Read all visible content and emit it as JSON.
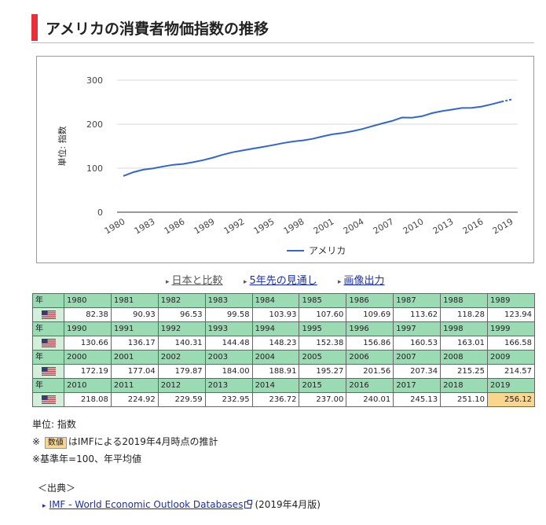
{
  "page": {
    "title": "アメリカの消費者物価指数の推移"
  },
  "links": [
    {
      "label": "日本と比較"
    },
    {
      "label": "5年先の見通し"
    },
    {
      "label": "画像出力"
    }
  ],
  "colors": {
    "accent": "#e8303a",
    "line": "#3366cc",
    "year_header_bg": "#9adbb4",
    "flag_cell_bg": "#d4eedc",
    "estimate_bg": "#f9d58e",
    "link": "#1a2fa8"
  },
  "chart_data": {
    "type": "line",
    "ylabel": "単位: 指数",
    "ylim": [
      0,
      300
    ],
    "yticks": [
      "0",
      "100",
      "200",
      "300"
    ],
    "xticks": [
      "1980",
      "1983",
      "1986",
      "1989",
      "1992",
      "1995",
      "1998",
      "2001",
      "2004",
      "2007",
      "2010",
      "2013",
      "2016",
      "2019"
    ],
    "legend_position": "bottom",
    "grid": true,
    "x": [
      1980,
      1981,
      1982,
      1983,
      1984,
      1985,
      1986,
      1987,
      1988,
      1989,
      1990,
      1991,
      1992,
      1993,
      1994,
      1995,
      1996,
      1997,
      1998,
      1999,
      2000,
      2001,
      2002,
      2003,
      2004,
      2005,
      2006,
      2007,
      2008,
      2009,
      2010,
      2011,
      2012,
      2013,
      2014,
      2015,
      2016,
      2017,
      2018,
      2019
    ],
    "series": [
      {
        "name": "アメリカ",
        "values": [
          82.38,
          90.93,
          96.53,
          99.58,
          103.93,
          107.6,
          109.69,
          113.62,
          118.28,
          123.94,
          130.66,
          136.17,
          140.31,
          144.48,
          148.23,
          152.38,
          156.86,
          160.53,
          163.01,
          166.58,
          172.19,
          177.04,
          179.87,
          184.0,
          188.91,
          195.27,
          201.56,
          207.34,
          215.25,
          214.57,
          218.08,
          224.92,
          229.59,
          232.95,
          236.72,
          237.0,
          240.01,
          245.13,
          251.1,
          256.12
        ],
        "estimated_from": 2019
      }
    ]
  },
  "table": {
    "header_label": "年",
    "country_icon": "us-flag-icon",
    "blocks": [
      {
        "years": [
          "1980",
          "1981",
          "1982",
          "1983",
          "1984",
          "1985",
          "1986",
          "1987",
          "1988",
          "1989"
        ],
        "values": [
          "82.38",
          "90.93",
          "96.53",
          "99.58",
          "103.93",
          "107.60",
          "109.69",
          "113.62",
          "118.28",
          "123.94"
        ]
      },
      {
        "years": [
          "1990",
          "1991",
          "1992",
          "1993",
          "1994",
          "1995",
          "1996",
          "1997",
          "1998",
          "1999"
        ],
        "values": [
          "130.66",
          "136.17",
          "140.31",
          "144.48",
          "148.23",
          "152.38",
          "156.86",
          "160.53",
          "163.01",
          "166.58"
        ]
      },
      {
        "years": [
          "2000",
          "2001",
          "2002",
          "2003",
          "2004",
          "2005",
          "2006",
          "2007",
          "2008",
          "2009"
        ],
        "values": [
          "172.19",
          "177.04",
          "179.87",
          "184.00",
          "188.91",
          "195.27",
          "201.56",
          "207.34",
          "215.25",
          "214.57"
        ]
      },
      {
        "years": [
          "2010",
          "2011",
          "2012",
          "2013",
          "2014",
          "2015",
          "2016",
          "2017",
          "2018",
          "2019"
        ],
        "values": [
          "218.08",
          "224.92",
          "229.59",
          "232.95",
          "236.72",
          "237.00",
          "240.01",
          "245.13",
          "251.10",
          "256.12"
        ]
      }
    ]
  },
  "notes": {
    "unit": "単位: 指数",
    "estimate_prefix": "※",
    "estimate_badge": "数値",
    "estimate_text": "はIMFによる2019年4月時点の推計",
    "base_year": "※基準年=100、年平均値"
  },
  "source": {
    "heading": "＜出典＞",
    "link_label": "IMF - World Economic Outlook Databases",
    "note": "(2019年4月版)"
  }
}
